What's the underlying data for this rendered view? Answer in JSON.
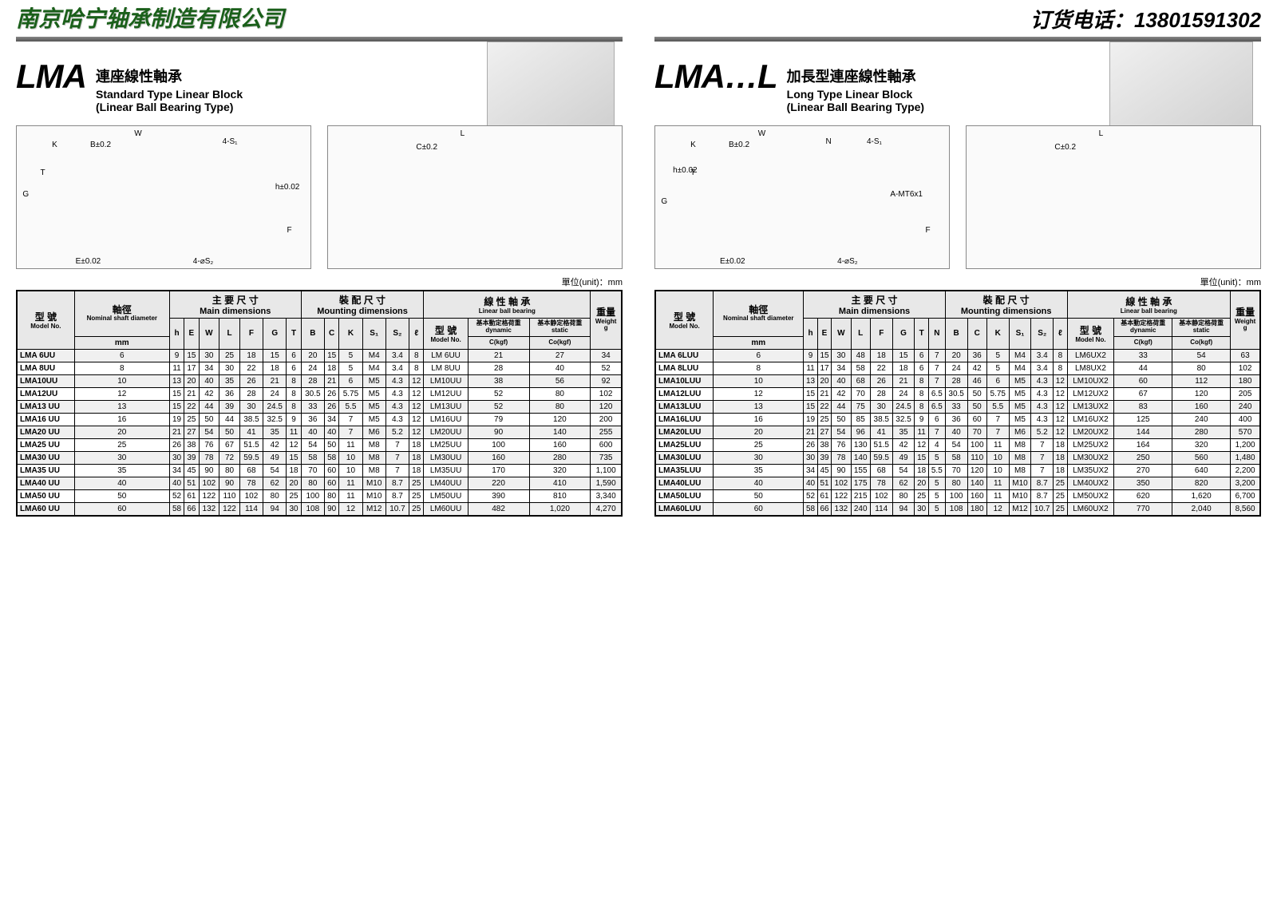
{
  "header": {
    "company": "南京哈宁轴承制造有限公司",
    "phone_label": "订货电话：",
    "phone": "13801591302"
  },
  "unit_label": "單位(unit)：mm",
  "left": {
    "big": "LMA",
    "sub_cn": "連座線性軸承",
    "sub_en1": "Standard Type Linear Block",
    "sub_en2": "(Linear Ball Bearing Type)",
    "draw_labels": [
      "W",
      "K",
      "B±0.2",
      "4-S₁",
      "G",
      "T",
      "h±0.02",
      "F",
      "E±0.02",
      "4-⌀S₂",
      "L",
      "C±0.2"
    ],
    "columns": {
      "model_cn": "型 號",
      "model_en": "Model No.",
      "shaft_cn": "軸徑",
      "shaft_tiny": "Nominal shaft diameter",
      "shaft_unit": "mm",
      "main_cn": "主 要 尺 寸",
      "main_en": "Main dimensions",
      "mount_cn": "裝 配 尺 寸",
      "mount_en": "Mounting dimensions",
      "bearing_cn": "線 性 軸 承",
      "bearing_en": "Linear ball bearing",
      "dyn_cn": "基本動定格荷重",
      "dyn_en": "dynamic C(kgf)",
      "stat_cn": "基本静定格荷重",
      "stat_en": "static Co(kgf)",
      "weight_cn": "重量",
      "weight_en": "Weight g",
      "h": "h",
      "E": "E",
      "W": "W",
      "L": "L",
      "F": "F",
      "G": "G",
      "T": "T",
      "B": "B",
      "C": "C",
      "K": "K",
      "S1": "S₁",
      "S2": "S₂",
      "l": "ℓ"
    },
    "rows": [
      [
        "LMA 6UU",
        6,
        9,
        15,
        30,
        25,
        18,
        15,
        6,
        20,
        15,
        5,
        "M4",
        3.4,
        8,
        "LM 6UU",
        21,
        27,
        34
      ],
      [
        "LMA 8UU",
        8,
        11,
        17,
        34,
        30,
        22,
        18,
        6,
        24,
        18,
        5,
        "M4",
        3.4,
        8,
        "LM 8UU",
        28,
        40,
        52
      ],
      [
        "LMA10UU",
        10,
        13,
        20,
        40,
        35,
        26,
        21,
        8,
        28,
        21,
        6,
        "M5",
        4.3,
        12,
        "LM10UU",
        38,
        56,
        92
      ],
      [
        "LMA12UU",
        12,
        15,
        21,
        42,
        36,
        28,
        24,
        8,
        30.5,
        26,
        5.75,
        "M5",
        4.3,
        12,
        "LM12UU",
        52,
        80,
        102
      ],
      [
        "LMA13 UU",
        13,
        15,
        22,
        44,
        39,
        30,
        24.5,
        8,
        33,
        26,
        5.5,
        "M5",
        4.3,
        12,
        "LM13UU",
        52,
        80,
        120
      ],
      [
        "LMA16 UU",
        16,
        19,
        25,
        50,
        44,
        38.5,
        32.5,
        9,
        36,
        34,
        7,
        "M5",
        4.3,
        12,
        "LM16UU",
        79,
        120,
        200
      ],
      [
        "LMA20 UU",
        20,
        21,
        27,
        54,
        50,
        41,
        35,
        11,
        40,
        40,
        7,
        "M6",
        5.2,
        12,
        "LM20UU",
        90,
        140,
        255
      ],
      [
        "LMA25 UU",
        25,
        26,
        38,
        76,
        67,
        51.5,
        42,
        12,
        54,
        50,
        11,
        "M8",
        7,
        18,
        "LM25UU",
        100,
        160,
        600
      ],
      [
        "LMA30 UU",
        30,
        30,
        39,
        78,
        72,
        59.5,
        49,
        15,
        58,
        58,
        10,
        "M8",
        7,
        18,
        "LM30UU",
        160,
        280,
        735
      ],
      [
        "LMA35 UU",
        35,
        34,
        45,
        90,
        80,
        68,
        54,
        18,
        70,
        60,
        10,
        "M8",
        7,
        18,
        "LM35UU",
        170,
        320,
        "1,100"
      ],
      [
        "LMA40 UU",
        40,
        40,
        51,
        102,
        90,
        78,
        62,
        20,
        80,
        60,
        11,
        "M10",
        8.7,
        25,
        "LM40UU",
        220,
        410,
        "1,590"
      ],
      [
        "LMA50 UU",
        50,
        52,
        61,
        122,
        110,
        102,
        80,
        25,
        100,
        80,
        11,
        "M10",
        8.7,
        25,
        "LM50UU",
        390,
        810,
        "3,340"
      ],
      [
        "LMA60 UU",
        60,
        58,
        66,
        132,
        122,
        114,
        94,
        30,
        108,
        90,
        12,
        "M12",
        10.7,
        25,
        "LM60UU",
        482,
        "1,020",
        "4,270"
      ]
    ]
  },
  "right": {
    "big": "LMA…L",
    "sub_cn": "加長型連座線性軸承",
    "sub_en1": "Long Type Linear Block",
    "sub_en2": "(Linear Ball Bearing Type)",
    "draw_labels": [
      "W",
      "K",
      "B±0.2",
      "N",
      "4-S₁",
      "G",
      "h±0.02",
      "T",
      "A-MT6x1",
      "F",
      "E±0.02",
      "4-⌀S₂",
      "L",
      "C±0.2"
    ],
    "columns": {
      "N": "N"
    },
    "rows": [
      [
        "LMA 6LUU",
        6,
        9,
        15,
        30,
        48,
        18,
        15,
        6,
        7,
        20,
        36,
        5,
        "M4",
        3.4,
        8,
        "LM6UX2",
        33,
        54,
        63
      ],
      [
        "LMA 8LUU",
        8,
        11,
        17,
        34,
        58,
        22,
        18,
        6,
        7,
        24,
        42,
        5,
        "M4",
        3.4,
        8,
        "LM8UX2",
        44,
        80,
        102
      ],
      [
        "LMA10LUU",
        10,
        13,
        20,
        40,
        68,
        26,
        21,
        8,
        7,
        28,
        46,
        6,
        "M5",
        4.3,
        12,
        "LM10UX2",
        60,
        112,
        180
      ],
      [
        "LMA12LUU",
        12,
        15,
        21,
        42,
        70,
        28,
        24,
        8,
        6.5,
        30.5,
        50,
        5.75,
        "M5",
        4.3,
        12,
        "LM12UX2",
        67,
        120,
        205
      ],
      [
        "LMA13LUU",
        13,
        15,
        22,
        44,
        75,
        30,
        24.5,
        8,
        6.5,
        33,
        50,
        5.5,
        "M5",
        4.3,
        12,
        "LM13UX2",
        83,
        160,
        240
      ],
      [
        "LMA16LUU",
        16,
        19,
        25,
        50,
        85,
        38.5,
        32.5,
        9,
        6,
        36,
        60,
        7,
        "M5",
        4.3,
        12,
        "LM16UX2",
        125,
        240,
        400
      ],
      [
        "LMA20LUU",
        20,
        21,
        27,
        54,
        96,
        41,
        35,
        11,
        7,
        40,
        70,
        7,
        "M6",
        5.2,
        12,
        "LM20UX2",
        144,
        280,
        570
      ],
      [
        "LMA25LUU",
        25,
        26,
        38,
        76,
        130,
        51.5,
        42,
        12,
        4,
        54,
        100,
        11,
        "M8",
        7,
        18,
        "LM25UX2",
        164,
        320,
        "1,200"
      ],
      [
        "LMA30LUU",
        30,
        30,
        39,
        78,
        140,
        59.5,
        49,
        15,
        5,
        58,
        110,
        10,
        "M8",
        7,
        18,
        "LM30UX2",
        250,
        560,
        "1,480"
      ],
      [
        "LMA35LUU",
        35,
        34,
        45,
        90,
        155,
        68,
        54,
        18,
        5.5,
        70,
        120,
        10,
        "M8",
        7,
        18,
        "LM35UX2",
        270,
        640,
        "2,200"
      ],
      [
        "LMA40LUU",
        40,
        40,
        51,
        102,
        175,
        78,
        62,
        20,
        5,
        80,
        140,
        11,
        "M10",
        8.7,
        25,
        "LM40UX2",
        350,
        820,
        "3,200"
      ],
      [
        "LMA50LUU",
        50,
        52,
        61,
        122,
        215,
        102,
        80,
        25,
        5,
        100,
        160,
        11,
        "M10",
        8.7,
        25,
        "LM50UX2",
        620,
        "1,620",
        "6,700"
      ],
      [
        "LMA60LUU",
        60,
        58,
        66,
        132,
        240,
        114,
        94,
        30,
        5,
        108,
        180,
        12,
        "M12",
        10.7,
        25,
        "LM60UX2",
        770,
        "2,040",
        "8,560"
      ]
    ]
  }
}
